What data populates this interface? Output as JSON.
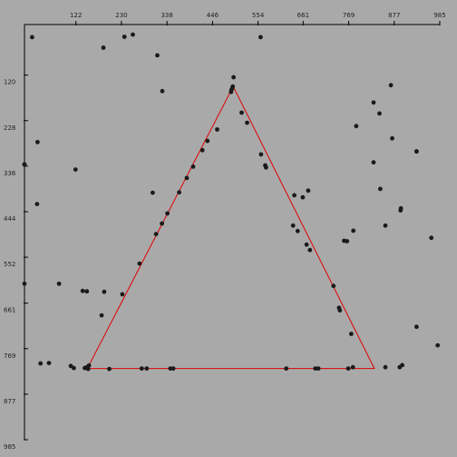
{
  "chart_data": {
    "type": "scatter",
    "title": "",
    "xlabel": "",
    "ylabel": "",
    "x_axis_position": "top",
    "y_axis_inverted": true,
    "grid": false,
    "xlim": [
      0,
      985
    ],
    "ylim": [
      0,
      985
    ],
    "x_ticks": [
      122,
      230,
      338,
      446,
      554,
      661,
      769,
      877,
      985
    ],
    "y_ticks": [
      120,
      228,
      336,
      444,
      552,
      661,
      769,
      877,
      985
    ],
    "colors": {
      "background": "#a9a9a9",
      "points": "#1a1a1a",
      "triangle": "#e00000",
      "axis": "#000000"
    },
    "triangle": [
      {
        "x": 495,
        "y": 147
      },
      {
        "x": 149,
        "y": 816
      },
      {
        "x": 830,
        "y": 816
      }
    ],
    "points": [
      {
        "x": 18,
        "y": 30
      },
      {
        "x": 187,
        "y": 55
      },
      {
        "x": 237,
        "y": 29
      },
      {
        "x": 257,
        "y": 24
      },
      {
        "x": 315,
        "y": 73
      },
      {
        "x": 560,
        "y": 30
      },
      {
        "x": 327,
        "y": 158
      },
      {
        "x": 496,
        "y": 125
      },
      {
        "x": 494,
        "y": 147
      },
      {
        "x": 493,
        "y": 151
      },
      {
        "x": 491,
        "y": 155
      },
      {
        "x": 490,
        "y": 160
      },
      {
        "x": 31,
        "y": 279
      },
      {
        "x": 0,
        "y": 332
      },
      {
        "x": 121,
        "y": 344
      },
      {
        "x": 304,
        "y": 399
      },
      {
        "x": 30,
        "y": 426
      },
      {
        "x": 457,
        "y": 249
      },
      {
        "x": 434,
        "y": 276
      },
      {
        "x": 422,
        "y": 298
      },
      {
        "x": 400,
        "y": 337
      },
      {
        "x": 385,
        "y": 364
      },
      {
        "x": 367,
        "y": 398
      },
      {
        "x": 339,
        "y": 448
      },
      {
        "x": 326,
        "y": 472
      },
      {
        "x": 312,
        "y": 497
      },
      {
        "x": 273,
        "y": 567
      },
      {
        "x": 232,
        "y": 640
      },
      {
        "x": 515,
        "y": 209
      },
      {
        "x": 528,
        "y": 233
      },
      {
        "x": 561,
        "y": 308
      },
      {
        "x": 571,
        "y": 334
      },
      {
        "x": 573,
        "y": 339
      },
      {
        "x": 640,
        "y": 405
      },
      {
        "x": 660,
        "y": 410
      },
      {
        "x": 673,
        "y": 394
      },
      {
        "x": 637,
        "y": 477
      },
      {
        "x": 648,
        "y": 490
      },
      {
        "x": 669,
        "y": 522
      },
      {
        "x": 677,
        "y": 535
      },
      {
        "x": 765,
        "y": 514
      },
      {
        "x": 780,
        "y": 489
      },
      {
        "x": 733,
        "y": 620
      },
      {
        "x": 746,
        "y": 672
      },
      {
        "x": 748,
        "y": 678
      },
      {
        "x": 775,
        "y": 734
      },
      {
        "x": 787,
        "y": 241
      },
      {
        "x": 828,
        "y": 185
      },
      {
        "x": 842,
        "y": 211
      },
      {
        "x": 869,
        "y": 144
      },
      {
        "x": 872,
        "y": 270
      },
      {
        "x": 828,
        "y": 327
      },
      {
        "x": 844,
        "y": 390
      },
      {
        "x": 856,
        "y": 477
      },
      {
        "x": 893,
        "y": 436
      },
      {
        "x": 892,
        "y": 441
      },
      {
        "x": 930,
        "y": 301
      },
      {
        "x": 965,
        "y": 506
      },
      {
        "x": 930,
        "y": 717
      },
      {
        "x": 980,
        "y": 761
      },
      {
        "x": 896,
        "y": 808
      },
      {
        "x": 890,
        "y": 813
      },
      {
        "x": 856,
        "y": 813
      },
      {
        "x": 779,
        "y": 813
      },
      {
        "x": 758,
        "y": 513
      },
      {
        "x": 0,
        "y": 615
      },
      {
        "x": 82,
        "y": 615
      },
      {
        "x": 138,
        "y": 632
      },
      {
        "x": 148,
        "y": 633
      },
      {
        "x": 189,
        "y": 634
      },
      {
        "x": 183,
        "y": 690
      },
      {
        "x": 38,
        "y": 804
      },
      {
        "x": 58,
        "y": 803
      },
      {
        "x": 110,
        "y": 810
      },
      {
        "x": 117,
        "y": 815
      },
      {
        "x": 143,
        "y": 815
      },
      {
        "x": 148,
        "y": 813
      },
      {
        "x": 151,
        "y": 817
      },
      {
        "x": 153,
        "y": 809
      },
      {
        "x": 201,
        "y": 817
      },
      {
        "x": 278,
        "y": 816
      },
      {
        "x": 290,
        "y": 816
      },
      {
        "x": 346,
        "y": 816
      },
      {
        "x": 353,
        "y": 816
      },
      {
        "x": 621,
        "y": 816
      },
      {
        "x": 690,
        "y": 816
      },
      {
        "x": 697,
        "y": 816
      },
      {
        "x": 768,
        "y": 816
      },
      {
        "x": 930,
        "y": 301
      },
      {
        "x": 0,
        "y": 332
      }
    ]
  }
}
